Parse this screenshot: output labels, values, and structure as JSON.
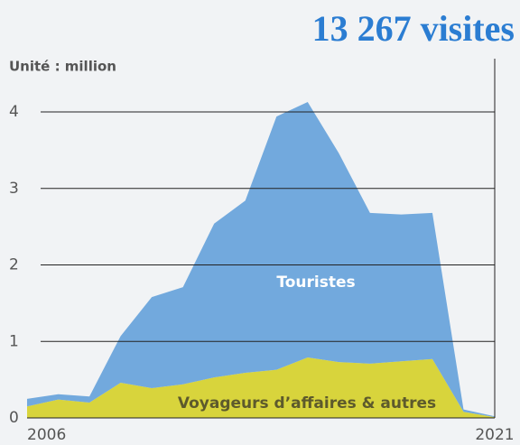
{
  "chart_data": {
    "type": "stacked_area",
    "title": "13 267 visites",
    "ylabel": "Unité : million",
    "x": [
      2006,
      2007,
      2008,
      2009,
      2010,
      2011,
      2012,
      2013,
      2014,
      2015,
      2016,
      2017,
      2018,
      2019,
      2020,
      2021
    ],
    "xlim": [
      2006,
      2021
    ],
    "xticks": [
      2006,
      2021
    ],
    "ylim": [
      0,
      4.1
    ],
    "yticks": [
      0,
      1,
      2,
      3,
      4
    ],
    "grid": true,
    "series": [
      {
        "name": "Voyageurs d’affaires & autres",
        "color": "#d8d43c",
        "values": [
          0.15,
          0.24,
          0.2,
          0.46,
          0.39,
          0.44,
          0.53,
          0.59,
          0.63,
          0.79,
          0.73,
          0.71,
          0.74,
          0.77,
          0.08,
          0.01
        ]
      },
      {
        "name": "Touristes",
        "color": "#72a9dd",
        "values": [
          0.1,
          0.07,
          0.08,
          0.61,
          1.19,
          1.27,
          2.01,
          2.25,
          3.31,
          3.34,
          2.73,
          1.97,
          1.92,
          1.91,
          0.03,
          0.01
        ]
      }
    ]
  }
}
